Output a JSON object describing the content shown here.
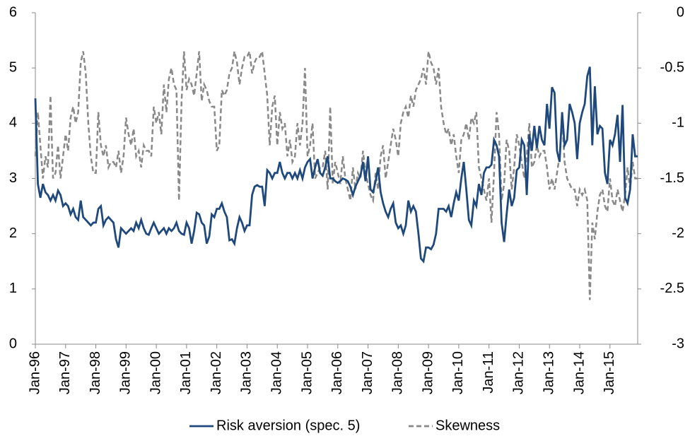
{
  "chart_data": {
    "type": "line",
    "categories": [
      "Jan-96",
      null,
      null,
      null,
      null,
      null,
      null,
      null,
      null,
      null,
      null,
      null,
      "Jan-97",
      null,
      null,
      null,
      null,
      null,
      null,
      null,
      null,
      null,
      null,
      null,
      "Jan-98",
      null,
      null,
      null,
      null,
      null,
      null,
      null,
      null,
      null,
      null,
      null,
      "Jan-99",
      null,
      null,
      null,
      null,
      null,
      null,
      null,
      null,
      null,
      null,
      null,
      "Jan-00",
      null,
      null,
      null,
      null,
      null,
      null,
      null,
      null,
      null,
      null,
      null,
      "Jan-01",
      null,
      null,
      null,
      null,
      null,
      null,
      null,
      null,
      null,
      null,
      null,
      "Jan-02",
      null,
      null,
      null,
      null,
      null,
      null,
      null,
      null,
      null,
      null,
      null,
      "Jan-03",
      null,
      null,
      null,
      null,
      null,
      null,
      null,
      null,
      null,
      null,
      null,
      "Jan-04",
      null,
      null,
      null,
      null,
      null,
      null,
      null,
      null,
      null,
      null,
      null,
      "Jan-05",
      null,
      null,
      null,
      null,
      null,
      null,
      null,
      null,
      null,
      null,
      null,
      "Jan-06",
      null,
      null,
      null,
      null,
      null,
      null,
      null,
      null,
      null,
      null,
      null,
      "Jan-07",
      null,
      null,
      null,
      null,
      null,
      null,
      null,
      null,
      null,
      null,
      null,
      "Jan-08",
      null,
      null,
      null,
      null,
      null,
      null,
      null,
      null,
      null,
      null,
      null,
      "Jan-09",
      null,
      null,
      null,
      null,
      null,
      null,
      null,
      null,
      null,
      null,
      null,
      "Jan-10",
      null,
      null,
      null,
      null,
      null,
      null,
      null,
      null,
      null,
      null,
      null,
      "Jan-11",
      null,
      null,
      null,
      null,
      null,
      null,
      null,
      null,
      null,
      null,
      null,
      "Jan-12",
      null,
      null,
      null,
      null,
      null,
      null,
      null,
      null,
      null,
      null,
      null,
      "Jan-13",
      null,
      null,
      null,
      null,
      null,
      null,
      null,
      null,
      null,
      null,
      null,
      "Jan-14",
      null,
      null,
      null,
      null,
      null,
      null,
      null,
      null,
      null,
      null,
      null,
      "Jan-15",
      null,
      null,
      null,
      null,
      null,
      null,
      null,
      null,
      null,
      null,
      null
    ],
    "series": [
      {
        "name": "Risk aversion (spec. 5)",
        "color": "#1f497d",
        "values": [
          4.45,
          2.9,
          2.65,
          2.9,
          2.75,
          2.7,
          2.6,
          2.7,
          2.6,
          2.78,
          2.7,
          2.5,
          2.55,
          2.5,
          2.35,
          2.45,
          2.3,
          2.25,
          2.6,
          2.3,
          2.25,
          2.2,
          2.15,
          2.2,
          2.2,
          2.45,
          2.5,
          2.15,
          2.25,
          2.3,
          2.25,
          2.2,
          1.9,
          1.75,
          2.1,
          2.05,
          2.0,
          2.05,
          2.1,
          2.05,
          2.2,
          2.1,
          2.25,
          2.1,
          2.0,
          1.98,
          2.1,
          2.2,
          2.1,
          2.0,
          2.05,
          2.1,
          2.0,
          2.1,
          2.05,
          2.1,
          2.2,
          2.05,
          2.0,
          1.98,
          2.2,
          2.1,
          1.82,
          2.05,
          2.38,
          2.35,
          2.2,
          2.15,
          1.82,
          1.95,
          2.35,
          2.3,
          2.45,
          2.45,
          2.55,
          2.4,
          2.3,
          1.88,
          1.9,
          1.82,
          2.1,
          2.3,
          2.2,
          2.05,
          2.15,
          2.15,
          2.7,
          2.85,
          2.88,
          2.85,
          2.85,
          2.5,
          3.15,
          3.1,
          3.0,
          3.1,
          3.1,
          3.3,
          3.1,
          3.0,
          3.1,
          3.1,
          3.0,
          3.1,
          3.0,
          3.15,
          3.0,
          3.2,
          3.3,
          3.35,
          3.0,
          3.2,
          3.35,
          3.1,
          3.05,
          3.2,
          3.4,
          3.0,
          3.0,
          2.95,
          2.92,
          2.95,
          3.0,
          2.98,
          2.95,
          2.85,
          2.7,
          2.85,
          2.95,
          3.05,
          3.3,
          2.95,
          3.4,
          2.8,
          2.75,
          2.95,
          3.2,
          2.75,
          2.55,
          2.4,
          2.3,
          2.45,
          2.55,
          2.2,
          2.1,
          2.15,
          2.0,
          2.15,
          2.6,
          2.4,
          2.5,
          2.4,
          2.0,
          1.55,
          1.5,
          1.75,
          1.75,
          1.72,
          1.8,
          2.0,
          2.45,
          2.45,
          2.45,
          2.4,
          2.5,
          2.3,
          2.55,
          2.75,
          2.6,
          3.0,
          3.3,
          2.8,
          2.25,
          2.15,
          2.6,
          2.5,
          2.9,
          2.7,
          3.1,
          3.2,
          3.2,
          3.25,
          3.7,
          3.6,
          3.4,
          2.2,
          1.85,
          2.35,
          2.8,
          2.5,
          2.65,
          3.15,
          3.2,
          3.7,
          3.6,
          2.7,
          3.8,
          3.5,
          3.95,
          3.55,
          3.95,
          3.7,
          3.6,
          4.35,
          3.9,
          4.65,
          4.55,
          3.5,
          3.3,
          4.2,
          3.6,
          3.7,
          4.35,
          4.2,
          4.0,
          3.35,
          4.0,
          4.2,
          4.35,
          4.85,
          5.02,
          3.6,
          4.67,
          3.8,
          3.95,
          3.9,
          3.1,
          2.9,
          3.7,
          3.6,
          3.8,
          4.15,
          3.3,
          4.33,
          2.65,
          2.55,
          2.8,
          3.8,
          3.4,
          3.4
        ]
      },
      {
        "name": "Skewness",
        "color": "#898989",
        "axis": "y2",
        "dashed": true,
        "values": [
          -1.3,
          -0.9,
          -1.2,
          -1.5,
          -1.3,
          -1.4,
          -0.75,
          -1.5,
          -1.45,
          -1.2,
          -1.5,
          -1.3,
          -1.1,
          -1.25,
          -0.95,
          -0.85,
          -1.0,
          -0.9,
          -0.45,
          -0.35,
          -0.55,
          -1.0,
          -1.3,
          -1.45,
          -1.45,
          -0.9,
          -1.2,
          -1.3,
          -1.2,
          -1.4,
          -1.35,
          -1.35,
          -1.4,
          -1.25,
          -1.45,
          -1.3,
          -0.95,
          -1.1,
          -1.2,
          -1.05,
          -1.3,
          -1.25,
          -1.4,
          -1.2,
          -1.25,
          -1.25,
          -1.3,
          -0.85,
          -1.0,
          -0.9,
          -1.1,
          -0.65,
          -0.9,
          -0.6,
          -0.5,
          -0.65,
          -0.7,
          -1.7,
          -0.8,
          -0.35,
          -0.7,
          -0.6,
          -0.65,
          -0.75,
          -0.55,
          -0.35,
          -0.8,
          -0.65,
          -0.7,
          -0.8,
          -0.85,
          -0.85,
          -1.25,
          -1.2,
          -0.7,
          -0.75,
          -0.7,
          -0.55,
          -0.5,
          -0.35,
          -0.45,
          -0.65,
          -0.5,
          -0.4,
          -0.4,
          -0.35,
          -0.55,
          -0.45,
          -0.4,
          -0.4,
          -0.35,
          -0.55,
          -0.75,
          -1.2,
          -0.85,
          -0.75,
          -1.2,
          -0.9,
          -1.05,
          -1.0,
          -1.3,
          -1.15,
          -1.35,
          -1.3,
          -1.0,
          -1.2,
          -1.0,
          -0.5,
          -1.3,
          -1.2,
          -1.0,
          -1.5,
          -1.45,
          -1.4,
          -1.4,
          -1.25,
          -1.6,
          -0.85,
          -1.55,
          -1.35,
          -1.45,
          -1.55,
          -1.3,
          -1.5,
          -1.6,
          -1.7,
          -1.4,
          -1.6,
          -1.45,
          -1.5,
          -1.25,
          -1.45,
          -1.55,
          -1.65,
          -1.7,
          -1.45,
          -1.6,
          -1.3,
          -1.2,
          -1.5,
          -1.35,
          -1.2,
          -1.05,
          -1.15,
          -1.3,
          -1.0,
          -0.9,
          -0.85,
          -0.95,
          -0.75,
          -0.85,
          -0.7,
          -0.65,
          -0.6,
          -0.5,
          -0.65,
          -0.35,
          -0.45,
          -0.5,
          -0.65,
          -0.5,
          -0.85,
          -1.0,
          -1.1,
          -1.05,
          -1.2,
          -1.1,
          -1.3,
          -1.45,
          -1.15,
          -1.1,
          -1.0,
          -1.15,
          -0.95,
          -1.0,
          -0.9,
          -1.4,
          -1.5,
          -1.6,
          -1.7,
          -1.5,
          -1.9,
          -1.45,
          -0.9,
          -1.1,
          -1.7,
          -1.55,
          -1.15,
          -1.25,
          -1.6,
          -1.4,
          -1.1,
          -1.2,
          -1.35,
          -1.5,
          -1.3,
          -1.0,
          -1.4,
          -1.35,
          -1.2,
          -1.3,
          -1.25,
          -1.25,
          -1.4,
          -1.6,
          -1.5,
          -1.6,
          -1.45,
          -1.3,
          -0.95,
          -1.35,
          -1.5,
          -1.55,
          -1.6,
          -1.6,
          -1.75,
          -1.6,
          -1.65,
          -1.6,
          -1.7,
          -2.6,
          -1.9,
          -2.05,
          -1.8,
          -1.65,
          -1.6,
          -1.75,
          -1.8,
          -1.5,
          -1.7,
          -1.75,
          -1.6,
          -1.7,
          -1.8,
          -1.65,
          -1.4,
          -1.6,
          -1.35,
          -1.5,
          -1.5
        ]
      }
    ],
    "ylim": [
      0,
      6
    ],
    "yticks": [
      0,
      1,
      2,
      3,
      4,
      5,
      6
    ],
    "y2lim": [
      -3,
      0
    ],
    "y2ticks": [
      -3,
      -2.5,
      -2,
      -1.5,
      -1,
      -0.5,
      0
    ],
    "legend": "bottom",
    "grid": false
  }
}
